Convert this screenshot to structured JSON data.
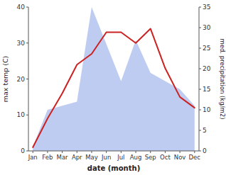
{
  "chart_data": {
    "type": "line",
    "xlabel": "date (month)",
    "ylabel": "max temp (C)",
    "y2label": "med. precipitation (kg/m2)",
    "categories": [
      "Jan",
      "Feb",
      "Mar",
      "Apr",
      "May",
      "Jun",
      "Jul",
      "Aug",
      "Sep",
      "Oct",
      "Nov",
      "Dec"
    ],
    "series": [
      {
        "type": "area",
        "axis": "y2",
        "color": "#aabbee",
        "values": [
          1,
          10,
          11,
          12,
          35,
          26,
          17,
          27,
          19,
          17,
          15,
          11
        ]
      },
      {
        "type": "line",
        "color": "#cc2222",
        "values": [
          1,
          9,
          16,
          24,
          27,
          33,
          33,
          30,
          34,
          23,
          15,
          12
        ]
      }
    ],
    "ylim": [
      0,
      40
    ],
    "yticks": [
      0,
      10,
      20,
      30,
      40
    ],
    "y2lim": [
      0,
      35
    ],
    "y2ticks": [
      0,
      5,
      10,
      15,
      20,
      25,
      30,
      35
    ],
    "grid": false
  }
}
